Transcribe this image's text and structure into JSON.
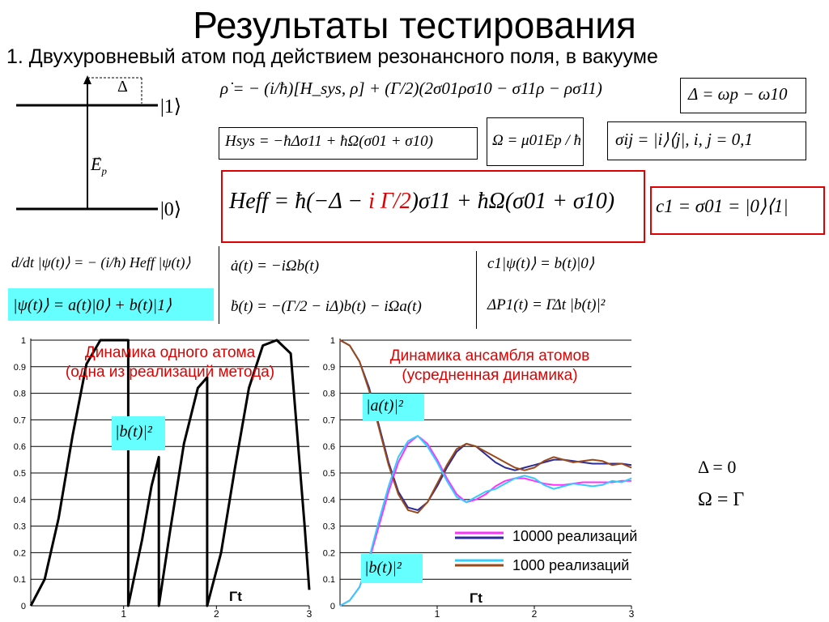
{
  "title": "Результаты тестирования",
  "subtitle": "1. Двухуровневый атом под действием резонансного поля, в вакууме",
  "level_diagram": {
    "delta": "Δ",
    "upper_level": "|1⟩",
    "lower_level": "|0⟩",
    "field": "E",
    "field_sub": "p"
  },
  "equations": {
    "master": "ρ̇ = − (i/ħ)[H_sys, ρ] + (Γ/2)(2σ01ρσ10 − σ11ρ − ρσ11)",
    "detuning": "Δ = ωp − ω10",
    "hsys": "Hsys = −ħΔσ11 + ħΩ(σ01 + σ10)",
    "rabi": "Ω = μ01Ep / ħ",
    "sigma": "σij = |i⟩⟨j|,  i, j = 0,1",
    "heff_lhs": "Heff = ħ(−Δ −",
    "heff_red": "i Γ/2",
    "heff_rhs": ")σ11 + ħΩ(σ01 + σ10)",
    "c1": "c1 = σ01 = |0⟩⟨1|",
    "schrod": "d/dt |ψ(t)⟩ = − (i/ħ) Heff |ψ(t)⟩",
    "psi": "|ψ(t)⟩ = a(t)|0⟩ + b(t)|1⟩",
    "adot": "ȧ(t) = −iΩb(t)",
    "bdot": "ḃ(t) = −(Γ/2 − iΔ)b(t) − iΩa(t)",
    "jump": "c1|ψ(t)⟩ = b(t)|0⟩",
    "prob": "ΔP1(t) = ΓΔt |b(t)|²"
  },
  "params": {
    "delta_zero": "Δ = 0",
    "omega_gamma": "Ω = Γ"
  },
  "colors": {
    "red": "#e00000",
    "cyan_box": "#66ffff",
    "dark_blue": "#2b2b9a",
    "magenta": "#ff33ff",
    "cyan_line": "#33ccff",
    "brown": "#9a4a1a"
  },
  "chart_data": [
    {
      "type": "line",
      "caption_line1": "Динамика одного атома",
      "caption_line2": "(одна из реализаций метода)",
      "xlabel": "Γt",
      "series_label": "|b(t)|²",
      "xlim": [
        0,
        3
      ],
      "ylim": [
        0,
        1
      ],
      "xticks": [
        "1",
        "2",
        "3"
      ],
      "yticks": [
        "0",
        "0.1",
        "0.2",
        "0.3",
        "0.4",
        "0.5",
        "0.6",
        "0.7",
        "0.8",
        "0.9",
        "1"
      ],
      "grid": true,
      "series": [
        {
          "x": [
            0,
            0.15,
            0.3,
            0.45,
            0.6,
            0.75,
            0.85,
            0.95,
            1.0,
            1.05,
            1.05,
            1.2,
            1.3,
            1.38,
            1.38,
            1.5,
            1.65,
            1.8,
            1.9,
            1.9,
            2.05,
            2.2,
            2.35,
            2.5,
            2.65,
            2.8,
            2.95,
            3.0
          ],
          "y": [
            0,
            0.1,
            0.33,
            0.64,
            0.91,
            1.0,
            1.0,
            1.0,
            1.0,
            1.0,
            0,
            0.25,
            0.45,
            0.56,
            0,
            0.28,
            0.61,
            0.82,
            0.86,
            0,
            0.2,
            0.52,
            0.82,
            0.98,
            1.0,
            0.95,
            0.3,
            0.06
          ]
        }
      ]
    },
    {
      "type": "line",
      "caption_line1": "Динамика ансамбля атомов",
      "caption_line2": "(усредненная динамика)",
      "xlabel": "Γt",
      "label_a": "|a(t)|²",
      "label_b": "|b(t)|²",
      "xlim": [
        0,
        3
      ],
      "ylim": [
        0,
        1
      ],
      "xticks": [
        "1",
        "2",
        "3"
      ],
      "yticks": [
        "0",
        "0.1",
        "0.2",
        "0.3",
        "0.4",
        "0.5",
        "0.6",
        "0.7",
        "0.8",
        "0.9",
        "1"
      ],
      "grid": true,
      "legend": [
        "10000 реализаций",
        "1000 реализаций"
      ],
      "x": [
        0,
        0.1,
        0.2,
        0.3,
        0.4,
        0.5,
        0.6,
        0.7,
        0.8,
        0.9,
        1.0,
        1.1,
        1.2,
        1.3,
        1.4,
        1.5,
        1.6,
        1.7,
        1.8,
        1.9,
        2.0,
        2.1,
        2.2,
        2.3,
        2.4,
        2.5,
        2.6,
        2.7,
        2.8,
        2.9,
        3.0
      ],
      "series": [
        {
          "name": "a 10000",
          "color": "#2b2b9a",
          "values": [
            1.0,
            0.98,
            0.92,
            0.82,
            0.68,
            0.54,
            0.43,
            0.37,
            0.36,
            0.39,
            0.45,
            0.52,
            0.58,
            0.61,
            0.6,
            0.57,
            0.54,
            0.52,
            0.51,
            0.52,
            0.53,
            0.54,
            0.55,
            0.55,
            0.545,
            0.54,
            0.535,
            0.535,
            0.535,
            0.535,
            0.53
          ]
        },
        {
          "name": "b 10000",
          "color": "#ff33ff",
          "values": [
            0.0,
            0.02,
            0.07,
            0.17,
            0.3,
            0.43,
            0.54,
            0.61,
            0.64,
            0.61,
            0.55,
            0.48,
            0.42,
            0.39,
            0.4,
            0.42,
            0.45,
            0.47,
            0.48,
            0.48,
            0.47,
            0.46,
            0.455,
            0.455,
            0.46,
            0.465,
            0.465,
            0.465,
            0.465,
            0.47,
            0.47
          ]
        },
        {
          "name": "a 1000",
          "color": "#9a4a1a",
          "values": [
            1.0,
            0.98,
            0.92,
            0.81,
            0.67,
            0.53,
            0.42,
            0.36,
            0.35,
            0.39,
            0.46,
            0.53,
            0.59,
            0.61,
            0.6,
            0.58,
            0.56,
            0.54,
            0.52,
            0.51,
            0.52,
            0.545,
            0.56,
            0.55,
            0.54,
            0.545,
            0.55,
            0.545,
            0.53,
            0.535,
            0.52
          ]
        },
        {
          "name": "b 1000",
          "color": "#33ccff",
          "values": [
            0.0,
            0.02,
            0.07,
            0.18,
            0.32,
            0.45,
            0.56,
            0.62,
            0.64,
            0.6,
            0.54,
            0.47,
            0.41,
            0.39,
            0.41,
            0.43,
            0.44,
            0.46,
            0.48,
            0.49,
            0.48,
            0.455,
            0.44,
            0.45,
            0.46,
            0.455,
            0.45,
            0.455,
            0.47,
            0.465,
            0.48
          ]
        }
      ]
    }
  ]
}
